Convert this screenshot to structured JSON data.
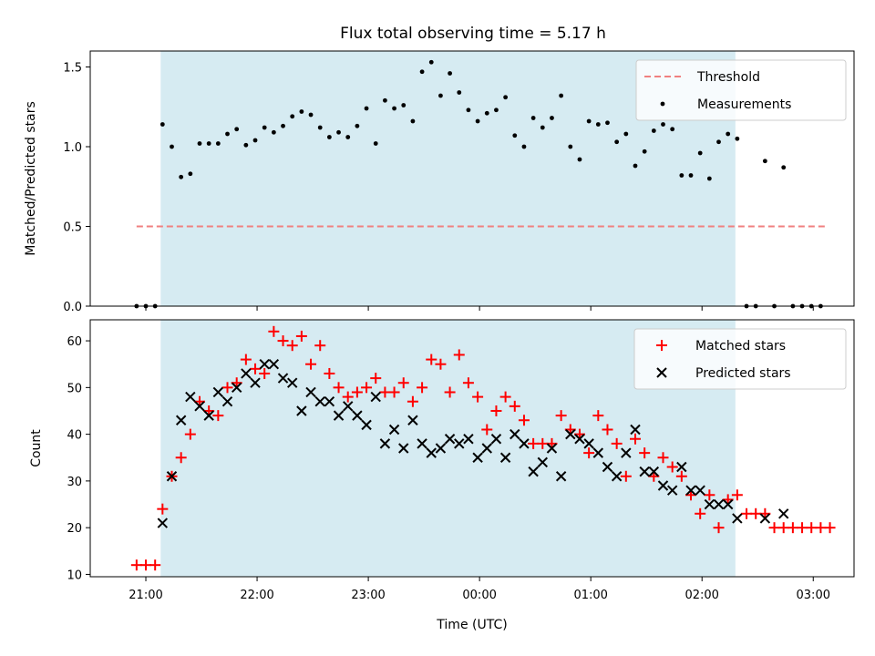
{
  "chart_data": [
    {
      "type": "scatter",
      "title": "Flux total observing time = 5.17 h",
      "xlabel": "",
      "ylabel": "Matched/Predicted stars",
      "ylim": [
        0,
        1.6
      ],
      "yticks": [
        "0.0",
        "0.5",
        "1.0",
        "1.5"
      ],
      "shaded_interval": [
        "21:08",
        "02:18"
      ],
      "threshold": {
        "name": "Threshold",
        "value": 0.5,
        "x_range": [
          "20:55",
          "03:08"
        ],
        "color": "#f08080"
      },
      "series": [
        {
          "name": "Measurements",
          "color": "#000000",
          "points": [
            [
              "20:55",
              0.0
            ],
            [
              "21:00",
              0.0
            ],
            [
              "21:05",
              0.0
            ],
            [
              "21:09",
              1.14
            ],
            [
              "21:14",
              1.0
            ],
            [
              "21:19",
              0.81
            ],
            [
              "21:24",
              0.83
            ],
            [
              "21:29",
              1.02
            ],
            [
              "21:34",
              1.02
            ],
            [
              "21:39",
              1.02
            ],
            [
              "21:44",
              1.08
            ],
            [
              "21:49",
              1.11
            ],
            [
              "21:54",
              1.01
            ],
            [
              "21:59",
              1.04
            ],
            [
              "22:04",
              1.12
            ],
            [
              "22:09",
              1.09
            ],
            [
              "22:14",
              1.13
            ],
            [
              "22:19",
              1.19
            ],
            [
              "22:24",
              1.22
            ],
            [
              "22:29",
              1.2
            ],
            [
              "22:34",
              1.12
            ],
            [
              "22:39",
              1.06
            ],
            [
              "22:44",
              1.09
            ],
            [
              "22:49",
              1.06
            ],
            [
              "22:54",
              1.13
            ],
            [
              "22:59",
              1.24
            ],
            [
              "23:04",
              1.02
            ],
            [
              "23:09",
              1.29
            ],
            [
              "23:14",
              1.24
            ],
            [
              "23:19",
              1.26
            ],
            [
              "23:24",
              1.16
            ],
            [
              "23:29",
              1.47
            ],
            [
              "23:34",
              1.53
            ],
            [
              "23:39",
              1.32
            ],
            [
              "23:44",
              1.46
            ],
            [
              "23:49",
              1.34
            ],
            [
              "23:54",
              1.23
            ],
            [
              "23:59",
              1.16
            ],
            [
              "00:04",
              1.21
            ],
            [
              "00:09",
              1.23
            ],
            [
              "00:14",
              1.31
            ],
            [
              "00:19",
              1.07
            ],
            [
              "00:24",
              1.0
            ],
            [
              "00:29",
              1.18
            ],
            [
              "00:34",
              1.12
            ],
            [
              "00:39",
              1.18
            ],
            [
              "00:44",
              1.32
            ],
            [
              "00:49",
              1.0
            ],
            [
              "00:54",
              0.92
            ],
            [
              "00:59",
              1.16
            ],
            [
              "01:04",
              1.14
            ],
            [
              "01:09",
              1.15
            ],
            [
              "01:14",
              1.03
            ],
            [
              "01:19",
              1.08
            ],
            [
              "01:24",
              0.88
            ],
            [
              "01:29",
              0.97
            ],
            [
              "01:34",
              1.1
            ],
            [
              "01:39",
              1.14
            ],
            [
              "01:44",
              1.11
            ],
            [
              "01:49",
              0.82
            ],
            [
              "01:54",
              0.82
            ],
            [
              "01:59",
              0.96
            ],
            [
              "02:04",
              0.8
            ],
            [
              "02:09",
              1.03
            ],
            [
              "02:14",
              1.08
            ],
            [
              "02:19",
              1.05
            ],
            [
              "02:24",
              0.0
            ],
            [
              "02:29",
              0.0
            ],
            [
              "02:34",
              0.91
            ],
            [
              "02:39",
              0.0
            ],
            [
              "02:44",
              0.87
            ],
            [
              "02:49",
              0.0
            ],
            [
              "02:54",
              0.0
            ],
            [
              "02:59",
              0.0
            ],
            [
              "03:04",
              0.0
            ]
          ]
        }
      ],
      "legend": {
        "position": "top-right",
        "entries": [
          "Threshold",
          "Measurements"
        ]
      }
    },
    {
      "type": "scatter",
      "title": "",
      "xlabel": "Time (UTC)",
      "ylabel": "Count",
      "ylim": [
        9.5,
        64.5
      ],
      "yticks": [
        "10",
        "20",
        "30",
        "40",
        "50",
        "60"
      ],
      "xticks": [
        "21:00",
        "22:00",
        "23:00",
        "00:00",
        "01:00",
        "02:00",
        "03:00"
      ],
      "shaded_interval": [
        "21:08",
        "02:18"
      ],
      "series": [
        {
          "name": "Matched stars",
          "marker": "plus",
          "color": "#ff0000",
          "points": [
            [
              "20:55",
              12
            ],
            [
              "21:00",
              12
            ],
            [
              "21:05",
              12
            ],
            [
              "21:09",
              24
            ],
            [
              "21:14",
              31
            ],
            [
              "21:19",
              35
            ],
            [
              "21:24",
              40
            ],
            [
              "21:29",
              47
            ],
            [
              "21:34",
              45
            ],
            [
              "21:39",
              44
            ],
            [
              "21:44",
              50
            ],
            [
              "21:49",
              51
            ],
            [
              "21:54",
              56
            ],
            [
              "21:59",
              54
            ],
            [
              "22:04",
              53
            ],
            [
              "22:09",
              62
            ],
            [
              "22:14",
              60
            ],
            [
              "22:19",
              59
            ],
            [
              "22:24",
              61
            ],
            [
              "22:29",
              55
            ],
            [
              "22:34",
              59
            ],
            [
              "22:39",
              53
            ],
            [
              "22:44",
              50
            ],
            [
              "22:49",
              48
            ],
            [
              "22:54",
              49
            ],
            [
              "22:59",
              50
            ],
            [
              "23:04",
              52
            ],
            [
              "23:09",
              49
            ],
            [
              "23:14",
              49
            ],
            [
              "23:19",
              51
            ],
            [
              "23:24",
              47
            ],
            [
              "23:29",
              50
            ],
            [
              "23:34",
              56
            ],
            [
              "23:39",
              55
            ],
            [
              "23:44",
              49
            ],
            [
              "23:49",
              57
            ],
            [
              "23:54",
              51
            ],
            [
              "23:59",
              48
            ],
            [
              "00:04",
              41
            ],
            [
              "00:09",
              45
            ],
            [
              "00:14",
              48
            ],
            [
              "00:19",
              46
            ],
            [
              "00:24",
              43
            ],
            [
              "00:29",
              38
            ],
            [
              "00:34",
              38
            ],
            [
              "00:39",
              38
            ],
            [
              "00:44",
              44
            ],
            [
              "00:49",
              41
            ],
            [
              "00:54",
              40
            ],
            [
              "00:59",
              36
            ],
            [
              "01:04",
              44
            ],
            [
              "01:09",
              41
            ],
            [
              "01:14",
              38
            ],
            [
              "01:19",
              31
            ],
            [
              "01:24",
              39
            ],
            [
              "01:29",
              36
            ],
            [
              "01:34",
              31
            ],
            [
              "01:39",
              35
            ],
            [
              "01:44",
              33
            ],
            [
              "01:49",
              31
            ],
            [
              "01:54",
              27
            ],
            [
              "01:59",
              23
            ],
            [
              "02:04",
              27
            ],
            [
              "02:09",
              20
            ],
            [
              "02:14",
              26
            ],
            [
              "02:19",
              27
            ],
            [
              "02:24",
              23
            ],
            [
              "02:29",
              23
            ],
            [
              "02:34",
              23
            ],
            [
              "02:39",
              20
            ],
            [
              "02:44",
              20
            ],
            [
              "02:49",
              20
            ],
            [
              "02:54",
              20
            ],
            [
              "02:59",
              20
            ],
            [
              "03:04",
              20
            ],
            [
              "03:09",
              20
            ]
          ]
        },
        {
          "name": "Predicted stars",
          "marker": "x",
          "color": "#000000",
          "points": [
            [
              "21:09",
              21
            ],
            [
              "21:14",
              31
            ],
            [
              "21:19",
              43
            ],
            [
              "21:24",
              48
            ],
            [
              "21:29",
              46
            ],
            [
              "21:34",
              44
            ],
            [
              "21:39",
              49
            ],
            [
              "21:44",
              47
            ],
            [
              "21:49",
              50
            ],
            [
              "21:54",
              53
            ],
            [
              "21:59",
              51
            ],
            [
              "22:04",
              55
            ],
            [
              "22:09",
              55
            ],
            [
              "22:14",
              52
            ],
            [
              "22:19",
              51
            ],
            [
              "22:24",
              45
            ],
            [
              "22:29",
              49
            ],
            [
              "22:34",
              47
            ],
            [
              "22:39",
              47
            ],
            [
              "22:44",
              44
            ],
            [
              "22:49",
              46
            ],
            [
              "22:54",
              44
            ],
            [
              "22:59",
              42
            ],
            [
              "23:04",
              48
            ],
            [
              "23:09",
              38
            ],
            [
              "23:14",
              41
            ],
            [
              "23:19",
              37
            ],
            [
              "23:24",
              43
            ],
            [
              "23:29",
              38
            ],
            [
              "23:34",
              36
            ],
            [
              "23:39",
              37
            ],
            [
              "23:44",
              39
            ],
            [
              "23:49",
              38
            ],
            [
              "23:54",
              39
            ],
            [
              "23:59",
              35
            ],
            [
              "00:04",
              37
            ],
            [
              "00:09",
              39
            ],
            [
              "00:14",
              35
            ],
            [
              "00:19",
              40
            ],
            [
              "00:24",
              38
            ],
            [
              "00:29",
              32
            ],
            [
              "00:34",
              34
            ],
            [
              "00:39",
              37
            ],
            [
              "00:44",
              31
            ],
            [
              "00:49",
              40
            ],
            [
              "00:54",
              39
            ],
            [
              "00:59",
              38
            ],
            [
              "01:04",
              36
            ],
            [
              "01:09",
              33
            ],
            [
              "01:14",
              31
            ],
            [
              "01:19",
              36
            ],
            [
              "01:24",
              41
            ],
            [
              "01:29",
              32
            ],
            [
              "01:34",
              32
            ],
            [
              "01:39",
              29
            ],
            [
              "01:44",
              28
            ],
            [
              "01:49",
              33
            ],
            [
              "01:54",
              28
            ],
            [
              "01:59",
              28
            ],
            [
              "02:04",
              25
            ],
            [
              "02:09",
              25
            ],
            [
              "02:14",
              25
            ],
            [
              "02:19",
              22
            ],
            [
              "02:34",
              22
            ],
            [
              "02:44",
              23
            ]
          ]
        }
      ],
      "legend": {
        "position": "top-right",
        "entries": [
          "Matched stars",
          "Predicted stars"
        ]
      }
    }
  ]
}
